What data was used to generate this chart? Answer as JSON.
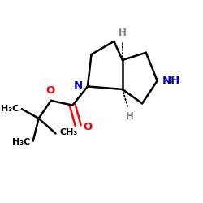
{
  "bg_color": "#ffffff",
  "bond_color": "#000000",
  "N_color": "#0000cc",
  "O_color": "#ff0000",
  "H_color": "#808080",
  "line_width": 1.8,
  "figsize": [
    2.5,
    2.5
  ],
  "dpi": 100,
  "xlim": [
    0.0,
    1.0
  ],
  "ylim": [
    0.0,
    1.0
  ]
}
